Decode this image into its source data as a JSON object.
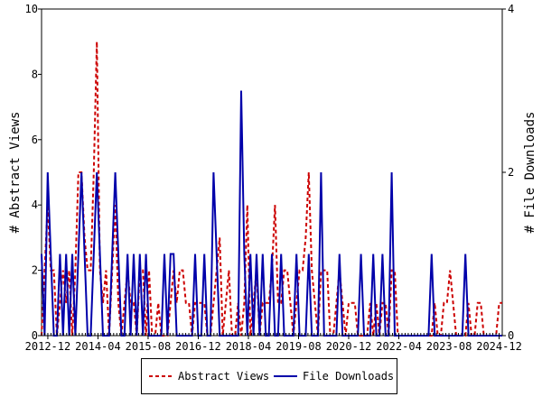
{
  "chart_data": {
    "type": "line",
    "title": "",
    "ylabel": "# Abstract Views",
    "y2label": "# File Downloads",
    "ylim": [
      0,
      10
    ],
    "y2lim": [
      0,
      4
    ],
    "yticks": [
      "0",
      "2",
      "4",
      "6",
      "8",
      "10"
    ],
    "y2ticks": [
      "0",
      "2",
      "4"
    ],
    "xtick_labels": [
      "2012-12",
      "2014-04",
      "2015-08",
      "2016-12",
      "2018-04",
      "2019-08",
      "2020-12",
      "2022-04",
      "2023-08",
      "2024-12"
    ],
    "x_start": "2012-10",
    "x_end": "2025-01",
    "legend_position": "bottom",
    "grid": false,
    "series": [
      {
        "name": "Abstract Views",
        "axis": "left",
        "color": "#cc0000",
        "style": "dashed",
        "points": [
          [
            "2012-10",
            0
          ],
          [
            "2012-11",
            2
          ],
          [
            "2012-12",
            4
          ],
          [
            "2013-01",
            2
          ],
          [
            "2013-02",
            2
          ],
          [
            "2013-03",
            0
          ],
          [
            "2013-04",
            1
          ],
          [
            "2013-05",
            2
          ],
          [
            "2013-06",
            1
          ],
          [
            "2013-07",
            2
          ],
          [
            "2013-08",
            0
          ],
          [
            "2013-09",
            2
          ],
          [
            "2013-10",
            5
          ],
          [
            "2013-11",
            5
          ],
          [
            "2013-12",
            3
          ],
          [
            "2014-01",
            2
          ],
          [
            "2014-02",
            2
          ],
          [
            "2014-03",
            5
          ],
          [
            "2014-04",
            9
          ],
          [
            "2014-05",
            2
          ],
          [
            "2014-06",
            1
          ],
          [
            "2014-07",
            2
          ],
          [
            "2014-08",
            0
          ],
          [
            "2014-09",
            2
          ],
          [
            "2014-10",
            4
          ],
          [
            "2014-11",
            1
          ],
          [
            "2014-12",
            0
          ],
          [
            "2015-01",
            1
          ],
          [
            "2015-02",
            2
          ],
          [
            "2015-03",
            1
          ],
          [
            "2015-04",
            1
          ],
          [
            "2015-05",
            0
          ],
          [
            "2015-06",
            2
          ],
          [
            "2015-07",
            2
          ],
          [
            "2015-08",
            0
          ],
          [
            "2015-09",
            2
          ],
          [
            "2015-10",
            0
          ],
          [
            "2015-11",
            0
          ],
          [
            "2015-12",
            1
          ],
          [
            "2016-01",
            0
          ],
          [
            "2016-02",
            0
          ],
          [
            "2016-03",
            0
          ],
          [
            "2016-04",
            1
          ],
          [
            "2016-05",
            2
          ],
          [
            "2016-06",
            1
          ],
          [
            "2016-07",
            2
          ],
          [
            "2016-08",
            2
          ],
          [
            "2016-09",
            1
          ],
          [
            "2016-10",
            1
          ],
          [
            "2016-11",
            0
          ],
          [
            "2016-12",
            1
          ],
          [
            "2016-13",
            1
          ],
          [
            "2017-01",
            1
          ],
          [
            "2017-02",
            1
          ],
          [
            "2017-03",
            0
          ],
          [
            "2017-04",
            0
          ],
          [
            "2017-05",
            1
          ],
          [
            "2017-06",
            2
          ],
          [
            "2017-07",
            3
          ],
          [
            "2017-08",
            0
          ],
          [
            "2017-09",
            1
          ],
          [
            "2017-10",
            2
          ],
          [
            "2017-11",
            0
          ],
          [
            "2017-12",
            0
          ],
          [
            "2018-01",
            1
          ],
          [
            "2018-02",
            0
          ],
          [
            "2018-03",
            1
          ],
          [
            "2018-04",
            4
          ],
          [
            "2018-05",
            0
          ],
          [
            "2018-06",
            1
          ],
          [
            "2018-07",
            2
          ],
          [
            "2018-08",
            0
          ],
          [
            "2018-09",
            1
          ],
          [
            "2018-10",
            1
          ],
          [
            "2018-11",
            1
          ],
          [
            "2018-12",
            2
          ],
          [
            "2019-01",
            4
          ],
          [
            "2019-02",
            1
          ],
          [
            "2019-03",
            1
          ],
          [
            "2019-04",
            2
          ],
          [
            "2019-05",
            2
          ],
          [
            "2019-06",
            1
          ],
          [
            "2019-07",
            0
          ],
          [
            "2019-08",
            1
          ],
          [
            "2019-09",
            2
          ],
          [
            "2019-10",
            2
          ],
          [
            "2019-11",
            3
          ],
          [
            "2019-12",
            5
          ],
          [
            "2020-01",
            2
          ],
          [
            "2020-02",
            1
          ],
          [
            "2020-03",
            0
          ],
          [
            "2020-04",
            2
          ],
          [
            "2020-05",
            2
          ],
          [
            "2020-06",
            2
          ],
          [
            "2020-07",
            0
          ],
          [
            "2020-08",
            0
          ],
          [
            "2020-09",
            1
          ],
          [
            "2020-10",
            2
          ],
          [
            "2020-11",
            1
          ],
          [
            "2020-12",
            0
          ],
          [
            "2021-01",
            1
          ],
          [
            "2021-02",
            1
          ],
          [
            "2021-03",
            1
          ],
          [
            "2021-04",
            0
          ],
          [
            "2021-05",
            0
          ],
          [
            "2021-06",
            0
          ],
          [
            "2021-07",
            0
          ],
          [
            "2021-08",
            1
          ],
          [
            "2021-09",
            0
          ],
          [
            "2021-10",
            1
          ],
          [
            "2021-11",
            0
          ],
          [
            "2021-12",
            1
          ],
          [
            "2022-01",
            1
          ],
          [
            "2022-02",
            0
          ],
          [
            "2022-03",
            2
          ],
          [
            "2022-04",
            2
          ],
          [
            "2022-05",
            0
          ],
          [
            "2022-06",
            0
          ],
          [
            "2022-07",
            0
          ],
          [
            "2022-08",
            0
          ],
          [
            "2022-09",
            0
          ],
          [
            "2022-10",
            0
          ],
          [
            "2022-11",
            0
          ],
          [
            "2022-12",
            0
          ],
          [
            "2023-01",
            0
          ],
          [
            "2023-02",
            0
          ],
          [
            "2023-03",
            0
          ],
          [
            "2023-04",
            0
          ],
          [
            "2023-05",
            1
          ],
          [
            "2023-06",
            0
          ],
          [
            "2023-07",
            0
          ],
          [
            "2023-08",
            1
          ],
          [
            "2023-09",
            1
          ],
          [
            "2023-10",
            2
          ],
          [
            "2023-11",
            1
          ],
          [
            "2023-12",
            0
          ],
          [
            "2024-01",
            0
          ],
          [
            "2024-02",
            0
          ],
          [
            "2024-03",
            0
          ],
          [
            "2024-04",
            1
          ],
          [
            "2024-05",
            0
          ],
          [
            "2024-06",
            0
          ],
          [
            "2024-07",
            1
          ],
          [
            "2024-08",
            1
          ],
          [
            "2024-09",
            0
          ],
          [
            "2024-10",
            0
          ],
          [
            "2024-11",
            0
          ],
          [
            "2024-12",
            0
          ],
          [
            "2025-01",
            0
          ],
          [
            "2025-02",
            1
          ],
          [
            "2025-03",
            1
          ]
        ]
      },
      {
        "name": "File Downloads",
        "axis": "right",
        "color": "#0000aa",
        "style": "solid",
        "points": [
          [
            "2012-10",
            1
          ],
          [
            "2012-11",
            0
          ],
          [
            "2012-12",
            2
          ],
          [
            "2013-01",
            1
          ],
          [
            "2013-02",
            0
          ],
          [
            "2013-03",
            0
          ],
          [
            "2013-04",
            1
          ],
          [
            "2013-05",
            0
          ],
          [
            "2013-06",
            1
          ],
          [
            "2013-07",
            0
          ],
          [
            "2013-08",
            1
          ],
          [
            "2013-09",
            0
          ],
          [
            "2013-10",
            1
          ],
          [
            "2013-11",
            2
          ],
          [
            "2013-12",
            1
          ],
          [
            "2014-01",
            0
          ],
          [
            "2014-02",
            0
          ],
          [
            "2014-03",
            1
          ],
          [
            "2014-04",
            2
          ],
          [
            "2014-05",
            1
          ],
          [
            "2014-06",
            0
          ],
          [
            "2014-07",
            0
          ],
          [
            "2014-08",
            0
          ],
          [
            "2014-09",
            1
          ],
          [
            "2014-10",
            2
          ],
          [
            "2014-11",
            1
          ],
          [
            "2014-12",
            0
          ],
          [
            "2015-01",
            0
          ],
          [
            "2015-02",
            1
          ],
          [
            "2015-03",
            0
          ],
          [
            "2015-04",
            1
          ],
          [
            "2015-05",
            0
          ],
          [
            "2015-06",
            1
          ],
          [
            "2015-07",
            0
          ],
          [
            "2015-08",
            1
          ],
          [
            "2015-09",
            0
          ],
          [
            "2015-10",
            0
          ],
          [
            "2015-11",
            0
          ],
          [
            "2015-12",
            0
          ],
          [
            "2016-01",
            0
          ],
          [
            "2016-02",
            1
          ],
          [
            "2016-03",
            0
          ],
          [
            "2016-04",
            1
          ],
          [
            "2016-05",
            1
          ],
          [
            "2016-06",
            0
          ],
          [
            "2016-07",
            0
          ],
          [
            "2016-08",
            0
          ],
          [
            "2016-09",
            0
          ],
          [
            "2016-10",
            0
          ],
          [
            "2016-11",
            0
          ],
          [
            "2016-12",
            1
          ],
          [
            "2016-13",
            0
          ],
          [
            "2017-01",
            0
          ],
          [
            "2017-02",
            1
          ],
          [
            "2017-03",
            0
          ],
          [
            "2017-04",
            0
          ],
          [
            "2017-05",
            2
          ],
          [
            "2017-06",
            1
          ],
          [
            "2017-07",
            0
          ],
          [
            "2017-08",
            0
          ],
          [
            "2017-09",
            0
          ],
          [
            "2017-10",
            0
          ],
          [
            "2017-11",
            0
          ],
          [
            "2017-12",
            0
          ],
          [
            "2018-01",
            0
          ],
          [
            "2018-02",
            3
          ],
          [
            "2018-03",
            1
          ],
          [
            "2018-04",
            0
          ],
          [
            "2018-05",
            1
          ],
          [
            "2018-06",
            0
          ],
          [
            "2018-07",
            1
          ],
          [
            "2018-08",
            0
          ],
          [
            "2018-09",
            1
          ],
          [
            "2018-10",
            0
          ],
          [
            "2018-11",
            0
          ],
          [
            "2018-12",
            1
          ],
          [
            "2019-01",
            0
          ],
          [
            "2019-02",
            0
          ],
          [
            "2019-03",
            1
          ],
          [
            "2019-04",
            0
          ],
          [
            "2019-05",
            0
          ],
          [
            "2019-06",
            0
          ],
          [
            "2019-07",
            0
          ],
          [
            "2019-08",
            1
          ],
          [
            "2019-09",
            0
          ],
          [
            "2019-10",
            0
          ],
          [
            "2019-11",
            0
          ],
          [
            "2019-12",
            1
          ],
          [
            "2020-01",
            0
          ],
          [
            "2020-02",
            0
          ],
          [
            "2020-03",
            0
          ],
          [
            "2020-04",
            2
          ],
          [
            "2020-05",
            0
          ],
          [
            "2020-06",
            0
          ],
          [
            "2020-07",
            0
          ],
          [
            "2020-08",
            0
          ],
          [
            "2020-09",
            0
          ],
          [
            "2020-10",
            1
          ],
          [
            "2020-11",
            0
          ],
          [
            "2020-12",
            0
          ],
          [
            "2021-01",
            0
          ],
          [
            "2021-02",
            0
          ],
          [
            "2021-03",
            0
          ],
          [
            "2021-04",
            0
          ],
          [
            "2021-05",
            1
          ],
          [
            "2021-06",
            0
          ],
          [
            "2021-07",
            0
          ],
          [
            "2021-08",
            0
          ],
          [
            "2021-09",
            1
          ],
          [
            "2021-10",
            0
          ],
          [
            "2021-11",
            0
          ],
          [
            "2021-12",
            1
          ],
          [
            "2022-01",
            0
          ],
          [
            "2022-02",
            0
          ],
          [
            "2022-03",
            2
          ],
          [
            "2022-04",
            0
          ],
          [
            "2022-05",
            0
          ],
          [
            "2022-06",
            0
          ],
          [
            "2022-07",
            0
          ],
          [
            "2022-08",
            0
          ],
          [
            "2022-09",
            0
          ],
          [
            "2022-10",
            0
          ],
          [
            "2022-11",
            0
          ],
          [
            "2022-12",
            0
          ],
          [
            "2023-01",
            0
          ],
          [
            "2023-02",
            0
          ],
          [
            "2023-03",
            0
          ],
          [
            "2023-04",
            1
          ],
          [
            "2023-05",
            0
          ],
          [
            "2023-06",
            0
          ],
          [
            "2023-07",
            0
          ],
          [
            "2023-08",
            0
          ],
          [
            "2023-09",
            0
          ],
          [
            "2023-10",
            0
          ],
          [
            "2023-11",
            0
          ],
          [
            "2023-12",
            0
          ],
          [
            "2024-01",
            0
          ],
          [
            "2024-02",
            0
          ],
          [
            "2024-03",
            1
          ],
          [
            "2024-04",
            0
          ],
          [
            "2024-05",
            0
          ],
          [
            "2024-06",
            0
          ],
          [
            "2024-07",
            0
          ],
          [
            "2024-08",
            0
          ],
          [
            "2024-09",
            0
          ],
          [
            "2024-10",
            0
          ],
          [
            "2024-11",
            0
          ],
          [
            "2024-12",
            0
          ],
          [
            "2025-01",
            0
          ],
          [
            "2025-02",
            0
          ],
          [
            "2025-03",
            0
          ]
        ]
      }
    ]
  }
}
